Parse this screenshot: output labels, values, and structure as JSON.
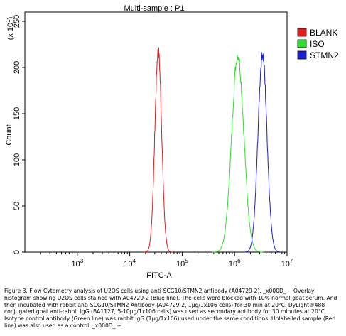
{
  "chart_data": {
    "type": "line",
    "title": "Multi-sample : P1",
    "xlabel": "FITC-A",
    "ylabel": "Count",
    "y_multiplier_label": "(x 10",
    "y_multiplier_exp": "1",
    "y_multiplier_close": ")",
    "x_scale": "log",
    "xlim": [
      100,
      10000000
    ],
    "ylim": [
      0,
      260
    ],
    "x_tick_labels": [
      {
        "base": "10",
        "exp": "3",
        "value": 1000
      },
      {
        "base": "10",
        "exp": "4",
        "value": 10000
      },
      {
        "base": "10",
        "exp": "5",
        "value": 100000
      },
      {
        "base": "10",
        "exp": "6",
        "value": 1000000
      },
      {
        "base": "10",
        "exp": "7",
        "value": 10000000
      }
    ],
    "y_ticks": [
      0,
      50,
      100,
      150,
      200,
      250
    ],
    "grid": false,
    "legend_position": "right",
    "series": [
      {
        "name": "BLANK",
        "color": "#e41a1c",
        "peak_x": 35000,
        "peak_y": 218,
        "width_decades": 0.065
      },
      {
        "name": "ISO",
        "color": "#2ee02e",
        "peak_x": 1150000,
        "peak_y": 214,
        "width_decades": 0.115
      },
      {
        "name": "STMN2",
        "color": "#1c1cd6",
        "peak_x": 3400000,
        "peak_y": 215,
        "width_decades": 0.085
      }
    ]
  },
  "caption": "Figure 3. Flow Cytometry analysis of U2OS cells using anti-SCG10/STMN2 antibody (A04729-2). _x000D_ -- Overlay histogram showing U2OS cells stained with A04729-2 (Blue line). The cells were blocked with 10% normal goat serum. And then incubated with rabbit anti-SCG10/STMN2 Antibody (A04729-2, 1μg/1x106 cells) for 30 min at 20°C. DyLight®488 conjugated goat anti-rabbit IgG (BA1127, 5-10μg/1x106 cells) was used as secondary antibody for 30 minutes at 20°C. Isotype control antibody (Green line) was rabbit IgG (1μg/1x106) used under the same conditions. Unlabelled sample (Red line) was also used as a control. _x000D_ --"
}
